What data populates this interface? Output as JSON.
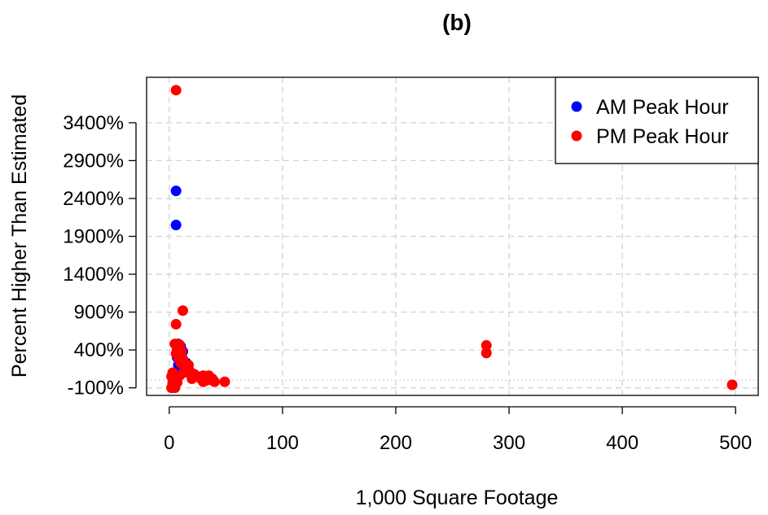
{
  "chart_data": {
    "type": "scatter",
    "title": "(b)",
    "xlabel": "1,000 Square Footage",
    "ylabel": "Percent Higher Than Estimated",
    "xlim": [
      -20,
      520
    ],
    "ylim": [
      -200,
      4000
    ],
    "x_ticks": [
      0,
      100,
      200,
      300,
      400,
      500
    ],
    "x_tick_labels": [
      "0",
      "100",
      "200",
      "300",
      "400",
      "500"
    ],
    "y_ticks": [
      -100,
      400,
      900,
      1400,
      1900,
      2400,
      2900,
      3400
    ],
    "y_tick_labels": [
      "-100%",
      "400%",
      "900%",
      "1400%",
      "1900%",
      "2400%",
      "2900%",
      "3400%"
    ],
    "grid": true,
    "reference_line_y": 0,
    "legend_position": "top-right",
    "series": [
      {
        "name": "AM Peak Hour",
        "color": "#0000ff",
        "points": [
          [
            6,
            2500
          ],
          [
            6,
            2050
          ],
          [
            8,
            480
          ],
          [
            10,
            450
          ],
          [
            7,
            300
          ],
          [
            12,
            380
          ],
          [
            15,
            230
          ],
          [
            14,
            180
          ],
          [
            18,
            100
          ],
          [
            10,
            100
          ],
          [
            20,
            80
          ],
          [
            33,
            40
          ],
          [
            8,
            200
          ],
          [
            5,
            60
          ],
          [
            25,
            50
          ],
          [
            3,
            -40
          ],
          [
            4,
            -60
          ],
          [
            36,
            10
          ]
        ]
      },
      {
        "name": "PM Peak Hour",
        "color": "#ff0000",
        "points": [
          [
            6,
            3830
          ],
          [
            12,
            920
          ],
          [
            6,
            740
          ],
          [
            5,
            480
          ],
          [
            9,
            470
          ],
          [
            7,
            400
          ],
          [
            11,
            380
          ],
          [
            6,
            350
          ],
          [
            8,
            300
          ],
          [
            12,
            280
          ],
          [
            10,
            230
          ],
          [
            17,
            200
          ],
          [
            14,
            150
          ],
          [
            13,
            100
          ],
          [
            18,
            120
          ],
          [
            22,
            80
          ],
          [
            9,
            60
          ],
          [
            30,
            60
          ],
          [
            28,
            20
          ],
          [
            35,
            60
          ],
          [
            38,
            20
          ],
          [
            40,
            -20
          ],
          [
            49,
            -20
          ],
          [
            30,
            -20
          ],
          [
            3,
            100
          ],
          [
            2,
            50
          ],
          [
            3,
            -40
          ],
          [
            4,
            -60
          ],
          [
            2,
            -100
          ],
          [
            5,
            -100
          ],
          [
            4,
            0
          ],
          [
            7,
            -30
          ],
          [
            8,
            50
          ],
          [
            20,
            20
          ],
          [
            33,
            0
          ],
          [
            280,
            460
          ],
          [
            280,
            360
          ],
          [
            497,
            -60
          ]
        ]
      }
    ]
  }
}
